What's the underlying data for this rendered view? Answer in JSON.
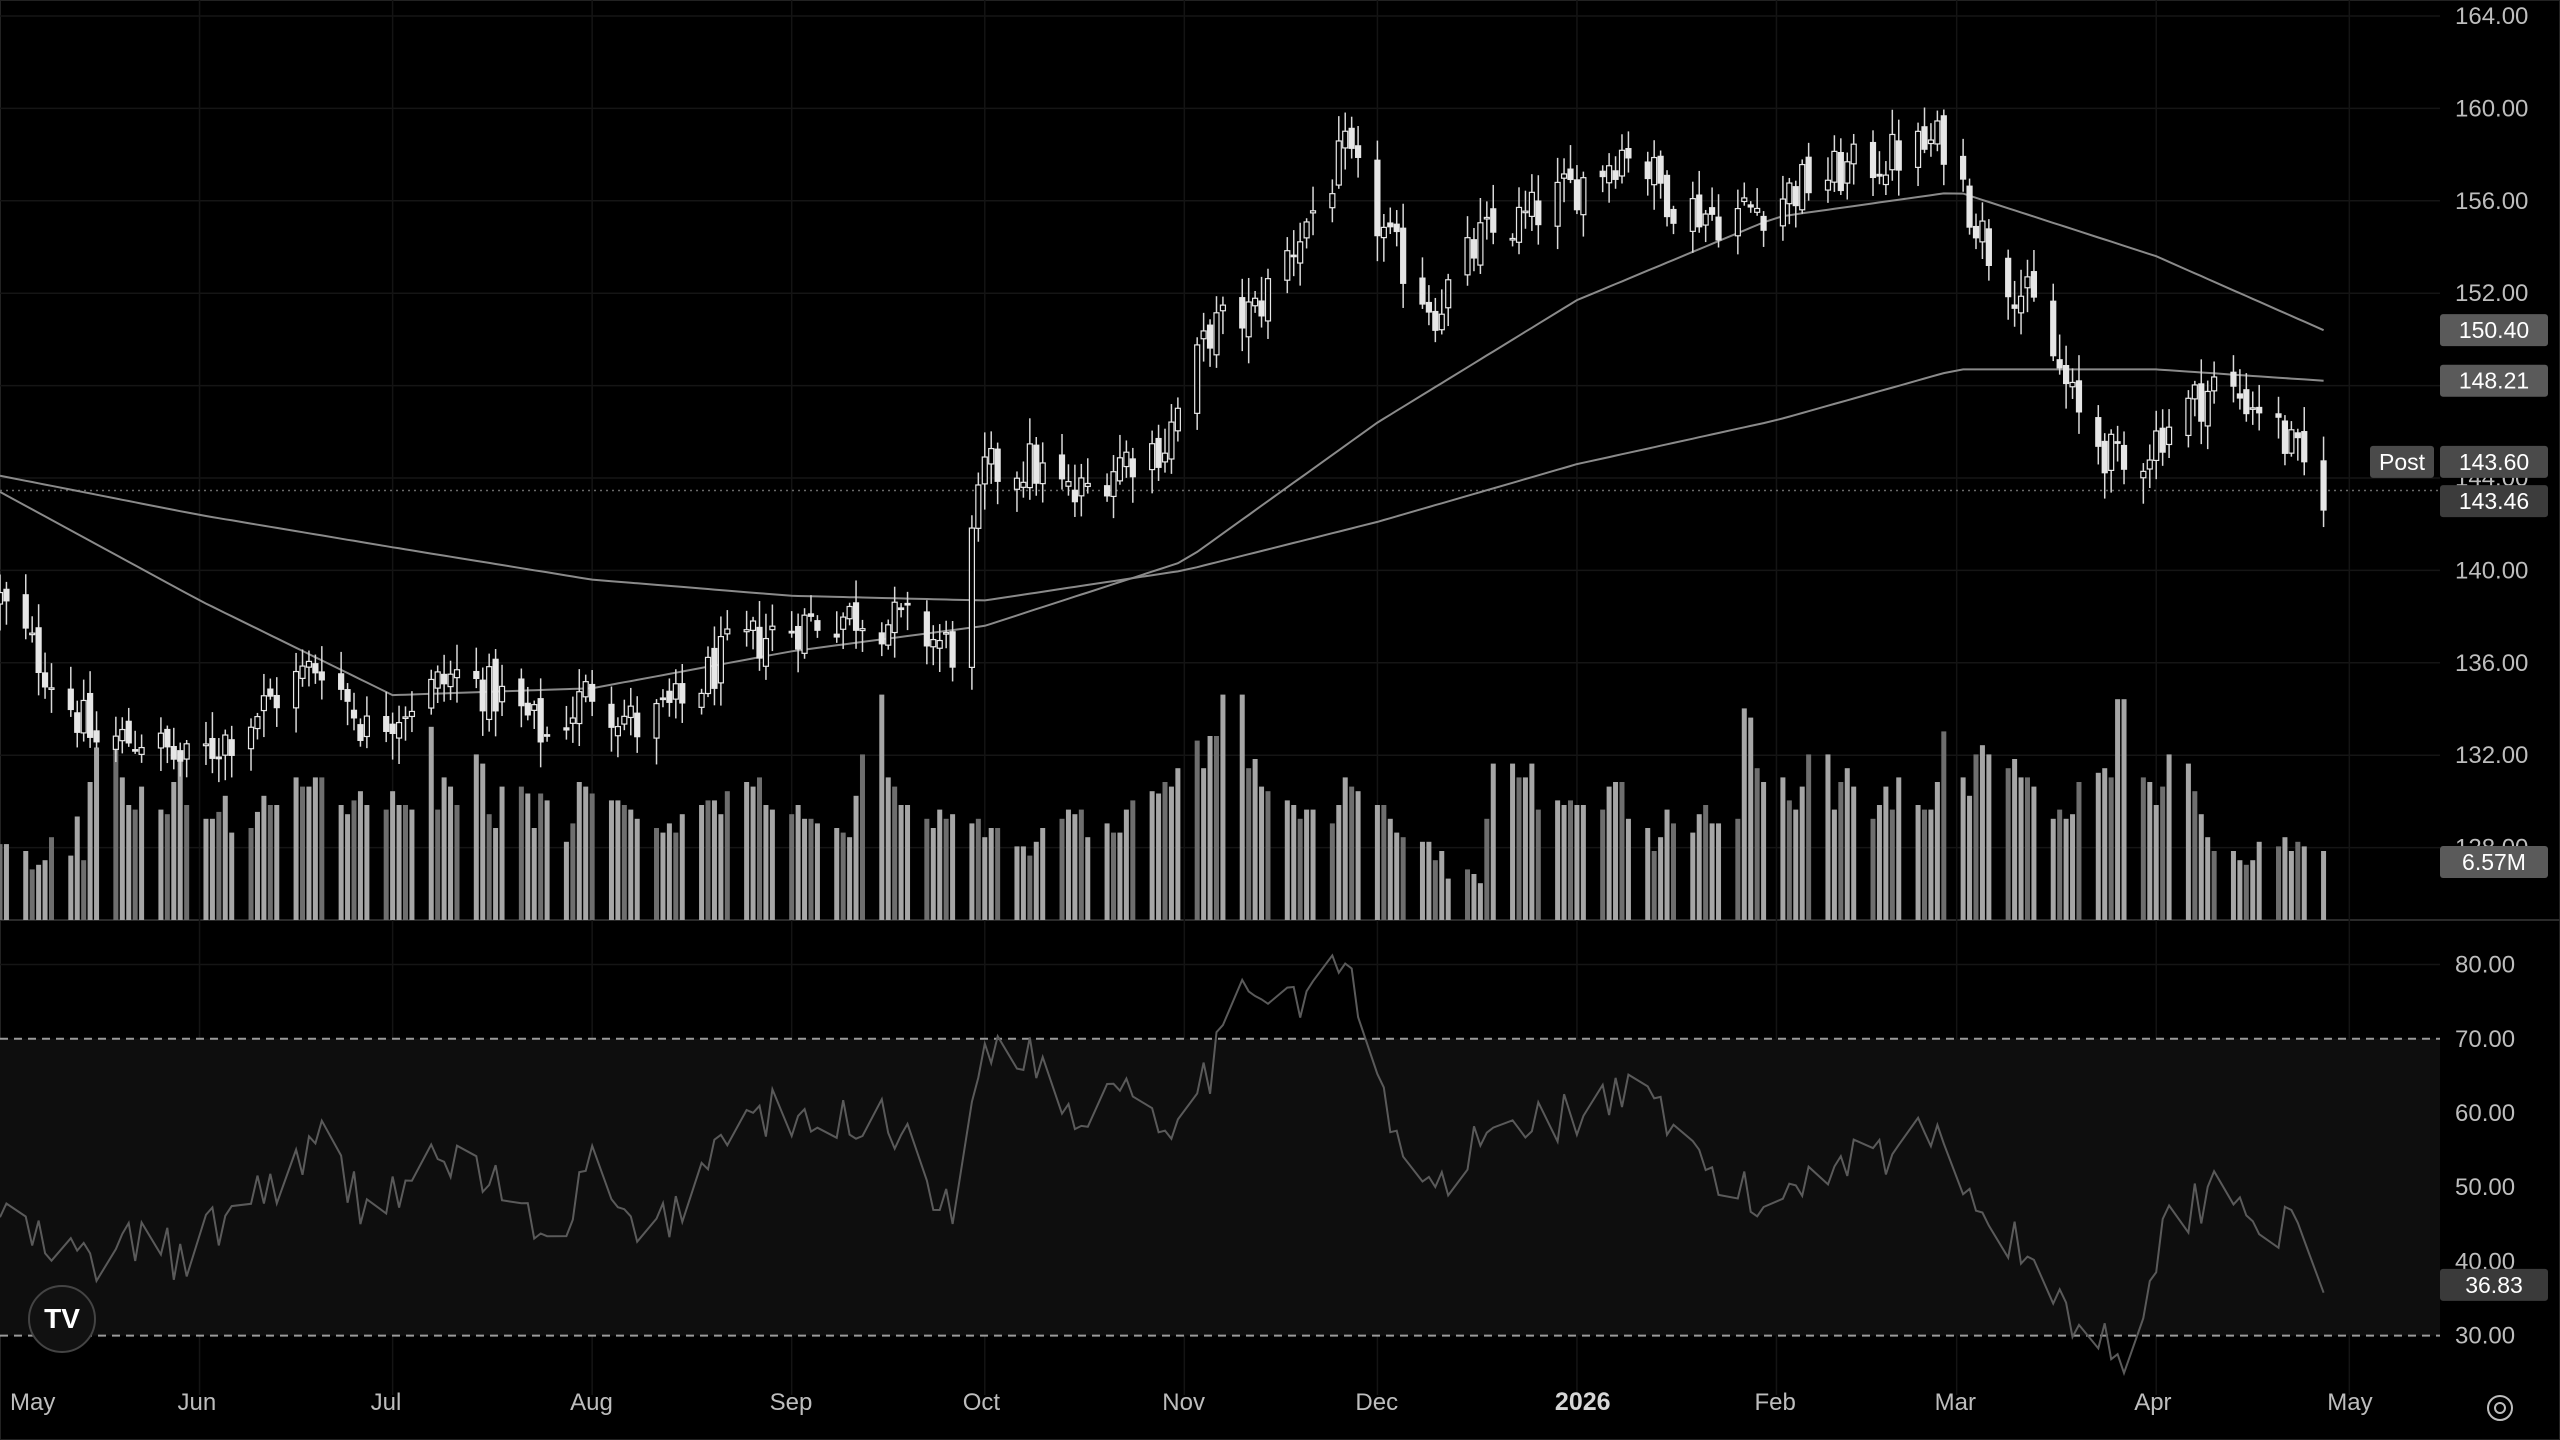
{
  "chart_data": [
    {
      "type": "candlestick",
      "price_axis_ticks": [
        "164.00",
        "160.00",
        "156.00",
        "152.00",
        "148.00",
        "144.00",
        "140.00",
        "136.00",
        "132.00",
        "128.00"
      ],
      "ylim": [
        124,
        164
      ],
      "x_axis_labels": [
        {
          "label": "May",
          "bold": false
        },
        {
          "label": "Jun",
          "bold": false
        },
        {
          "label": "Jul",
          "bold": false
        },
        {
          "label": "Aug",
          "bold": false
        },
        {
          "label": "Sep",
          "bold": false
        },
        {
          "label": "Oct",
          "bold": false
        },
        {
          "label": "Nov",
          "bold": false
        },
        {
          "label": "Dec",
          "bold": false
        },
        {
          "label": "2026",
          "bold": true
        },
        {
          "label": "Feb",
          "bold": false
        },
        {
          "label": "Mar",
          "bold": false
        },
        {
          "label": "Apr",
          "bold": false
        },
        {
          "label": "May",
          "bold": false
        }
      ],
      "close_series_anchor": [
        {
          "date": "2025-05-01",
          "close": 138.7
        },
        {
          "date": "2025-05-09",
          "close": 135.4
        },
        {
          "date": "2025-05-16",
          "close": 132.5
        },
        {
          "date": "2025-05-23",
          "close": 132.8
        },
        {
          "date": "2025-05-30",
          "close": 131.6
        },
        {
          "date": "2025-06-06",
          "close": 132.9
        },
        {
          "date": "2025-06-13",
          "close": 134.6
        },
        {
          "date": "2025-06-20",
          "close": 136.1
        },
        {
          "date": "2025-06-27",
          "close": 133.1
        },
        {
          "date": "2025-07-03",
          "close": 134.2
        },
        {
          "date": "2025-07-11",
          "close": 135.5
        },
        {
          "date": "2025-07-18",
          "close": 134.5
        },
        {
          "date": "2025-07-25",
          "close": 132.8
        },
        {
          "date": "2025-08-01",
          "close": 134.9
        },
        {
          "date": "2025-08-08",
          "close": 133.2
        },
        {
          "date": "2025-08-15",
          "close": 134.2
        },
        {
          "date": "2025-08-22",
          "close": 136.4
        },
        {
          "date": "2025-08-29",
          "close": 137.3
        },
        {
          "date": "2025-09-05",
          "close": 137.9
        },
        {
          "date": "2025-09-12",
          "close": 138.1
        },
        {
          "date": "2025-09-19",
          "close": 137.6
        },
        {
          "date": "2025-09-26",
          "close": 136.6
        },
        {
          "date": "2025-10-01",
          "close": 144.2
        },
        {
          "date": "2025-10-08",
          "close": 144.6
        },
        {
          "date": "2025-10-15",
          "close": 143.1
        },
        {
          "date": "2025-10-22",
          "close": 144.8
        },
        {
          "date": "2025-10-29",
          "close": 145.5
        },
        {
          "date": "2025-11-05",
          "close": 150.4
        },
        {
          "date": "2025-11-12",
          "close": 151.2
        },
        {
          "date": "2025-11-19",
          "close": 154.6
        },
        {
          "date": "2025-11-26",
          "close": 158.0
        },
        {
          "date": "2025-12-03",
          "close": 154.0
        },
        {
          "date": "2025-12-10",
          "close": 151.3
        },
        {
          "date": "2025-12-17",
          "close": 154.3
        },
        {
          "date": "2025-12-24",
          "close": 155.2
        },
        {
          "date": "2026-01-02",
          "close": 156.9
        },
        {
          "date": "2026-01-09",
          "close": 158.4
        },
        {
          "date": "2026-01-16",
          "close": 156.0
        },
        {
          "date": "2026-01-23",
          "close": 155.3
        },
        {
          "date": "2026-01-30",
          "close": 155.8
        },
        {
          "date": "2026-02-06",
          "close": 156.8
        },
        {
          "date": "2026-02-13",
          "close": 157.4
        },
        {
          "date": "2026-02-20",
          "close": 158.0
        },
        {
          "date": "2026-02-27",
          "close": 158.6
        },
        {
          "date": "2026-03-06",
          "close": 153.9
        },
        {
          "date": "2026-03-13",
          "close": 151.3
        },
        {
          "date": "2026-03-20",
          "close": 146.6
        },
        {
          "date": "2026-03-27",
          "close": 144.2
        },
        {
          "date": "2026-04-03",
          "close": 146.4
        },
        {
          "date": "2026-04-10",
          "close": 148.0
        },
        {
          "date": "2026-04-17",
          "close": 147.2
        },
        {
          "date": "2026-04-24",
          "close": 144.4
        },
        {
          "date": "2026-04-27",
          "close": 143.46
        }
      ],
      "ma_50_anchor": [
        {
          "date": "2025-05-01",
          "value": 143.4
        },
        {
          "date": "2025-06-01",
          "value": 138.7
        },
        {
          "date": "2025-07-01",
          "value": 134.6
        },
        {
          "date": "2025-08-01",
          "value": 134.9
        },
        {
          "date": "2025-09-01",
          "value": 136.5
        },
        {
          "date": "2025-10-01",
          "value": 137.6
        },
        {
          "date": "2025-11-01",
          "value": 140.4
        },
        {
          "date": "2025-12-01",
          "value": 146.4
        },
        {
          "date": "2026-01-01",
          "value": 151.7
        },
        {
          "date": "2026-02-01",
          "value": 155.3
        },
        {
          "date": "2026-03-01",
          "value": 156.4
        },
        {
          "date": "2026-04-01",
          "value": 153.6
        },
        {
          "date": "2026-04-27",
          "value": 150.4
        }
      ],
      "ma_200_anchor": [
        {
          "date": "2025-05-01",
          "value": 144.1
        },
        {
          "date": "2025-06-01",
          "value": 142.4
        },
        {
          "date": "2025-07-01",
          "value": 141.0
        },
        {
          "date": "2025-08-01",
          "value": 139.6
        },
        {
          "date": "2025-09-01",
          "value": 138.9
        },
        {
          "date": "2025-10-01",
          "value": 138.7
        },
        {
          "date": "2025-11-01",
          "value": 140.0
        },
        {
          "date": "2025-12-01",
          "value": 142.1
        },
        {
          "date": "2026-01-01",
          "value": 144.6
        },
        {
          "date": "2026-02-01",
          "value": 146.5
        },
        {
          "date": "2026-03-01",
          "value": 148.7
        },
        {
          "date": "2026-04-01",
          "value": 148.7
        },
        {
          "date": "2026-04-27",
          "value": 148.21
        }
      ],
      "last_price": "143.46",
      "post_market_label": "Post",
      "post_market_price": "143.60",
      "ma_50_last": "150.40",
      "ma_200_last": "148.21"
    },
    {
      "type": "bar",
      "name": "volume",
      "volume_last": "6.57M",
      "relative_volume": [
        0.33,
        0.3,
        0.22,
        0.24,
        0.26,
        0.36,
        0.28,
        0.45,
        0.26,
        0.6,
        0.75,
        0.62,
        0.5,
        0.48,
        0.58,
        0.48,
        0.46,
        0.6,
        0.72,
        0.5,
        0.44,
        0.47,
        0.54,
        0.38,
        0.4,
        0.47,
        0.54,
        0.5,
        0.5,
        0.62,
        0.58,
        0.62,
        0.62,
        0.5,
        0.46,
        0.52,
        0.56,
        0.5,
        0.48,
        0.56,
        0.5,
        0.48,
        0.84,
        0.48,
        0.62,
        0.58,
        0.5,
        0.72,
        0.68,
        0.46,
        0.4,
        0.58,
        0.55,
        0.4,
        0.55,
        0.52,
        0.34,
        0.42,
        0.6,
        0.58,
        0.55,
        0.52,
        0.5,
        0.48,
        0.44,
        0.4,
        0.38,
        0.42,
        0.38,
        0.46,
        0.5,
        0.52,
        0.46,
        0.56,
        0.6,
        0.58,
        0.62,
        0.5,
        0.48,
        0.46,
        0.5,
        0.44,
        0.42,
        0.4,
        0.38,
        0.36,
        0.54,
        0.72,
        0.98,
        0.62,
        0.58,
        0.5,
        0.44,
        0.4,
        0.48,
        0.44,
        0.46,
        0.42,
        0.44,
        0.36,
        0.4,
        0.4,
        0.32,
        0.28,
        0.34,
        0.4,
        0.44,
        0.48,
        0.46,
        0.48,
        0.36,
        0.42,
        0.38,
        0.48,
        0.52,
        0.56,
        0.55,
        0.6,
        0.58,
        0.66,
        0.78,
        0.66,
        0.8,
        0.98,
        0.98,
        0.66,
        0.7,
        0.58,
        0.56,
        0.52,
        0.5,
        0.44,
        0.48,
        0.42,
        0.5,
        0.62,
        0.58,
        0.56,
        0.5,
        0.5,
        0.44,
        0.38,
        0.36,
        0.34,
        0.26,
        0.3,
        0.18,
        0.22,
        0.2,
        0.16,
        0.44,
        0.68,
        0.68,
        0.62,
        0.68,
        0.48,
        0.52,
        0.5,
        0.52,
        0.5,
        0.5,
        0.48,
        0.58,
        0.6,
        0.44,
        0.4,
        0.3,
        0.36,
        0.48,
        0.42,
        0.38,
        0.46,
        0.5,
        0.42,
        0.44,
        0.92,
        0.88,
        0.66,
        0.6,
        0.62,
        0.52,
        0.48,
        0.58,
        0.72,
        0.48,
        0.6,
        0.66,
        0.58,
        0.44,
        0.5,
        0.58,
        0.48,
        0.62,
        0.5,
        0.48,
        0.6,
        0.82,
        0.62,
        0.54,
        0.72,
        0.76,
        0.72,
        0.66,
        0.7,
        0.62,
        0.58,
        0.44,
        0.48,
        0.44,
        0.46,
        0.6,
        0.64,
        0.66,
        0.62,
        0.96,
        0.62,
        0.6,
        0.5,
        0.58,
        0.72,
        0.68,
        0.56,
        0.46,
        0.36,
        0.3,
        0.26,
        0.24,
        0.26,
        0.34,
        0.32,
        0.36,
        0.3,
        0.34,
        0.32,
        0.3
      ]
    },
    {
      "type": "line",
      "name": "rsi",
      "rsi_axis_ticks": [
        "80.00",
        "70.00",
        "60.00",
        "50.00",
        "40.00",
        "30.00"
      ],
      "ylim": [
        22,
        86
      ],
      "bands": [
        30,
        70
      ],
      "rsi_last": "36.83",
      "rsi_anchor": [
        {
          "date": "2025-05-01",
          "value": 47
        },
        {
          "date": "2025-05-09",
          "value": 41
        },
        {
          "date": "2025-05-16",
          "value": 40
        },
        {
          "date": "2025-05-23",
          "value": 43
        },
        {
          "date": "2025-05-30",
          "value": 40
        },
        {
          "date": "2025-06-06",
          "value": 47
        },
        {
          "date": "2025-06-13",
          "value": 51
        },
        {
          "date": "2025-06-20",
          "value": 56
        },
        {
          "date": "2025-06-27",
          "value": 47
        },
        {
          "date": "2025-07-03",
          "value": 51
        },
        {
          "date": "2025-07-11",
          "value": 54
        },
        {
          "date": "2025-07-18",
          "value": 50
        },
        {
          "date": "2025-07-25",
          "value": 41
        },
        {
          "date": "2025-08-01",
          "value": 53
        },
        {
          "date": "2025-08-08",
          "value": 42
        },
        {
          "date": "2025-08-15",
          "value": 48
        },
        {
          "date": "2025-08-22",
          "value": 58
        },
        {
          "date": "2025-08-29",
          "value": 60
        },
        {
          "date": "2025-09-05",
          "value": 57
        },
        {
          "date": "2025-09-12",
          "value": 60
        },
        {
          "date": "2025-09-19",
          "value": 57
        },
        {
          "date": "2025-09-26",
          "value": 45
        },
        {
          "date": "2025-10-01",
          "value": 70
        },
        {
          "date": "2025-10-08",
          "value": 68
        },
        {
          "date": "2025-10-15",
          "value": 59
        },
        {
          "date": "2025-10-22",
          "value": 65
        },
        {
          "date": "2025-10-29",
          "value": 59
        },
        {
          "date": "2025-11-05",
          "value": 66
        },
        {
          "date": "2025-11-12",
          "value": 78
        },
        {
          "date": "2025-11-19",
          "value": 76
        },
        {
          "date": "2025-11-26",
          "value": 80
        },
        {
          "date": "2025-12-03",
          "value": 58
        },
        {
          "date": "2025-12-10",
          "value": 49
        },
        {
          "date": "2025-12-17",
          "value": 56
        },
        {
          "date": "2025-12-24",
          "value": 59
        },
        {
          "date": "2026-01-02",
          "value": 60
        },
        {
          "date": "2026-01-09",
          "value": 63
        },
        {
          "date": "2026-01-16",
          "value": 57
        },
        {
          "date": "2026-01-23",
          "value": 51
        },
        {
          "date": "2026-01-30",
          "value": 47
        },
        {
          "date": "2026-02-06",
          "value": 52
        },
        {
          "date": "2026-02-13",
          "value": 55
        },
        {
          "date": "2026-02-20",
          "value": 55
        },
        {
          "date": "2026-02-27",
          "value": 58
        },
        {
          "date": "2026-03-06",
          "value": 45
        },
        {
          "date": "2026-03-13",
          "value": 40
        },
        {
          "date": "2026-03-20",
          "value": 31
        },
        {
          "date": "2026-03-27",
          "value": 28
        },
        {
          "date": "2026-04-03",
          "value": 45
        },
        {
          "date": "2026-04-10",
          "value": 50
        },
        {
          "date": "2026-04-17",
          "value": 47
        },
        {
          "date": "2026-04-24",
          "value": 42
        },
        {
          "date": "2026-04-27",
          "value": 36.83
        }
      ]
    }
  ],
  "ui": {
    "logo_text": "TV",
    "settings_icon": "gear-icon"
  }
}
